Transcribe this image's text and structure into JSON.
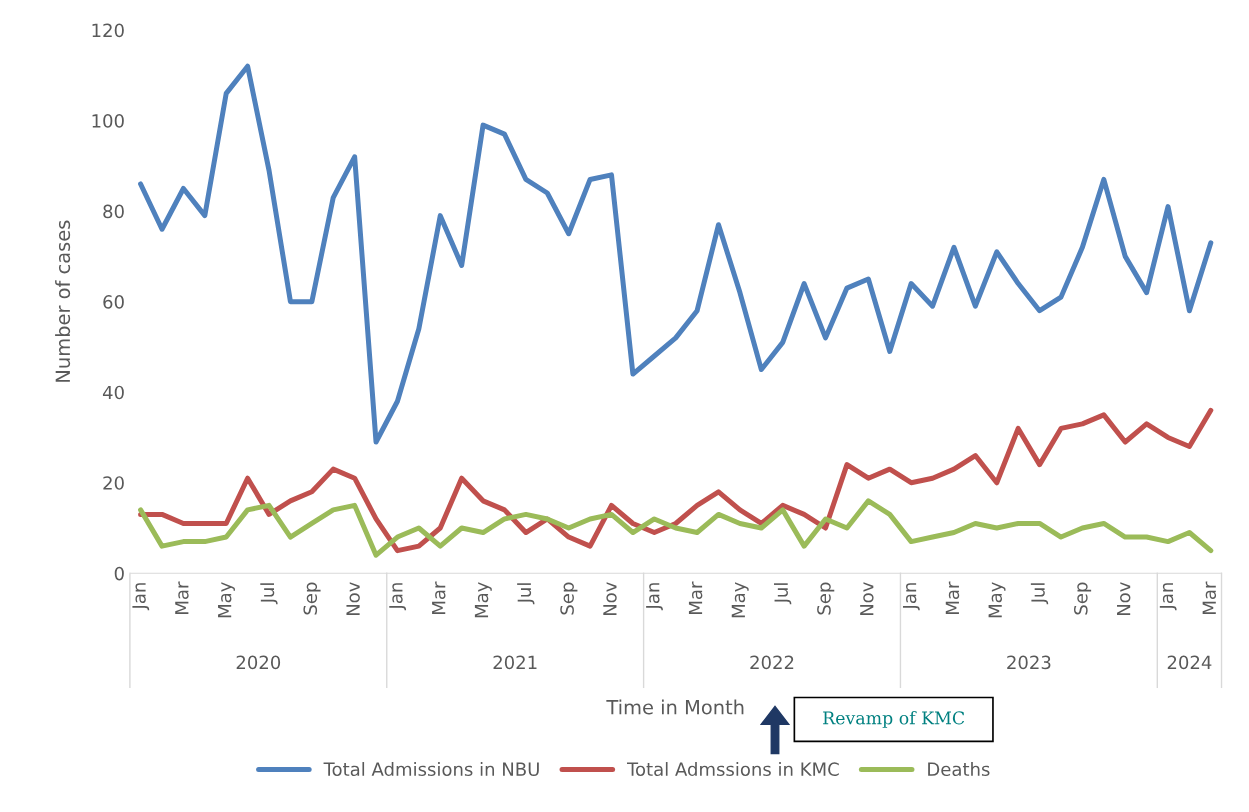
{
  "chart_data": {
    "type": "line",
    "xlabel": "Time in Month",
    "ylabel": "Number of cases",
    "categories": [
      "Jan",
      null,
      "Mar",
      null,
      "May",
      null,
      "Jul",
      null,
      "Sep",
      null,
      "Nov",
      null,
      "Jan",
      null,
      "Mar",
      null,
      "May",
      null,
      "Jul",
      null,
      "Sep",
      null,
      "Nov",
      null,
      "Jan",
      null,
      "Mar",
      null,
      "May",
      null,
      "Jul",
      null,
      "Sep",
      null,
      "Nov",
      null,
      "Jan",
      null,
      "Mar",
      null,
      "May",
      null,
      "Jul",
      null,
      "Sep",
      null,
      "Nov",
      null,
      "Jan",
      null,
      "Mar"
    ],
    "series": [
      {
        "name": "Total Admissions in NBU",
        "color": "#4f81bd",
        "values": [
          86,
          76,
          85,
          79,
          106,
          112,
          89,
          60,
          60,
          83,
          92,
          29,
          38,
          54,
          79,
          68,
          99,
          97,
          87,
          84,
          75,
          87,
          88,
          44,
          48,
          52,
          58,
          77,
          62,
          45,
          51,
          64,
          52,
          63,
          65,
          49,
          64,
          59,
          72,
          59,
          71,
          64,
          58,
          61,
          72,
          87,
          70,
          62,
          81,
          58,
          73
        ]
      },
      {
        "name": "Total Admssions in KMC",
        "color": "#c0504d",
        "values": [
          13,
          13,
          11,
          11,
          11,
          21,
          13,
          16,
          18,
          23,
          21,
          12,
          5,
          6,
          10,
          21,
          16,
          14,
          9,
          12,
          8,
          6,
          15,
          11,
          9,
          11,
          15,
          18,
          14,
          11,
          15,
          13,
          10,
          24,
          21,
          23,
          20,
          21,
          23,
          26,
          20,
          32,
          24,
          32,
          33,
          35,
          29,
          33,
          30,
          28,
          36
        ]
      },
      {
        "name": "Deaths",
        "color": "#9bbb59",
        "values": [
          14,
          6,
          7,
          7,
          8,
          14,
          15,
          8,
          11,
          14,
          15,
          4,
          8,
          10,
          6,
          10,
          9,
          12,
          13,
          12,
          10,
          12,
          13,
          9,
          12,
          10,
          9,
          13,
          11,
          10,
          14,
          6,
          12,
          10,
          16,
          13,
          7,
          8,
          9,
          11,
          10,
          11,
          11,
          8,
          10,
          11,
          8,
          8,
          7,
          9,
          5
        ]
      }
    ],
    "ylim": [
      0,
      120
    ],
    "yticks": [
      0,
      20,
      40,
      60,
      80,
      100,
      120
    ],
    "annotations": [
      "2020",
      "2021",
      "2022",
      "2023",
      "2024",
      "Revamp of KMC"
    ],
    "grid": false,
    "legend": "bottom",
    "marker": "none",
    "line_style": "solid"
  }
}
